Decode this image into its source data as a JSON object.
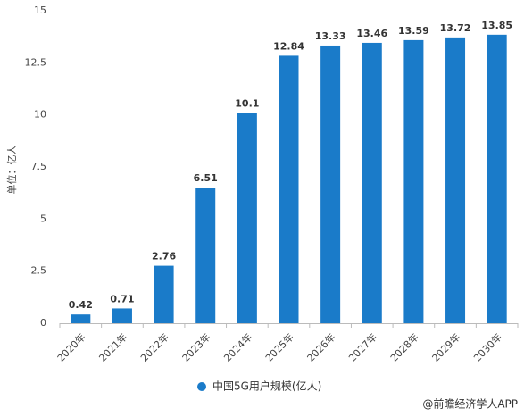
{
  "chart_data": {
    "type": "bar",
    "y_label": "单位：亿人",
    "categories": [
      "2020年",
      "2021年",
      "2022年",
      "2023年",
      "2024年",
      "2025年",
      "2026年",
      "2027年",
      "2028年",
      "2029年",
      "2030年"
    ],
    "series": [
      {
        "name": "中国5G用户规模(亿人)",
        "color": "#1a7bc9",
        "values": [
          0.42,
          0.71,
          2.76,
          6.51,
          10.1,
          12.84,
          13.33,
          13.46,
          13.59,
          13.72,
          13.85
        ]
      }
    ],
    "ylim": [
      0,
      15
    ],
    "yticks": [
      0,
      2.5,
      5,
      7.5,
      10,
      12.5,
      15
    ],
    "grid": false,
    "legend": "bottom",
    "source": "@前瞻经济学人APP"
  }
}
